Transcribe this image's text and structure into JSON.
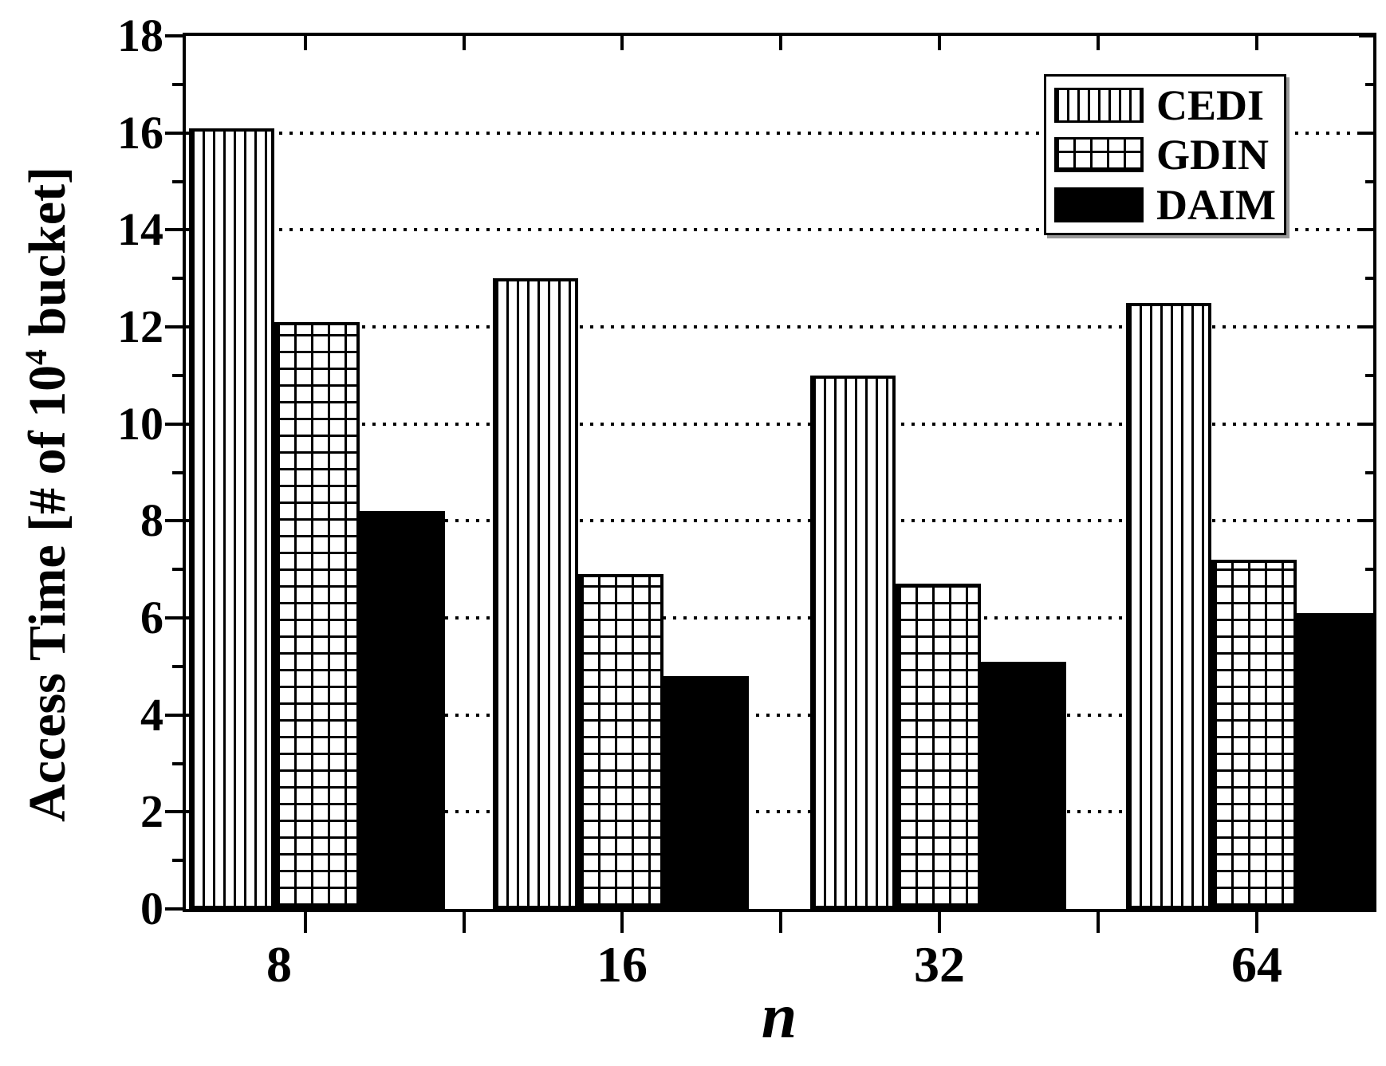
{
  "chart_data": {
    "type": "bar",
    "title": "",
    "xlabel": "n",
    "ylabel": "Access Time [# of 10^4 bucket]",
    "ylabel_rich": {
      "prefix": "Access Time [# of 10",
      "superscript": "4",
      "suffix": " bucket]"
    },
    "categories": [
      "8",
      "16",
      "32",
      "64"
    ],
    "series": [
      {
        "name": "CEDI",
        "pattern": "vertical-stripes",
        "values": [
          16.1,
          13.0,
          11.0,
          12.5
        ]
      },
      {
        "name": "GDIN",
        "pattern": "grid-crosshatch",
        "values": [
          12.1,
          6.9,
          6.7,
          7.2
        ]
      },
      {
        "name": "DAIM",
        "pattern": "solid-black",
        "values": [
          8.2,
          4.8,
          5.1,
          6.1
        ]
      }
    ],
    "ylim": [
      0,
      18
    ],
    "yticks": [
      0,
      2,
      4,
      6,
      8,
      10,
      12,
      14,
      16,
      18
    ],
    "y_minor_ticks": [
      1,
      3,
      5,
      7,
      9,
      11,
      13,
      15,
      17
    ],
    "gridlines": {
      "style": "dotted-horizontal",
      "values": [
        2,
        4,
        6,
        8,
        10,
        12,
        14,
        16
      ]
    },
    "legend": {
      "position": "top-right",
      "entries": [
        "CEDI",
        "GDIN",
        "DAIM"
      ]
    },
    "colors": {
      "foreground": "#000000",
      "background": "#ffffff"
    }
  }
}
